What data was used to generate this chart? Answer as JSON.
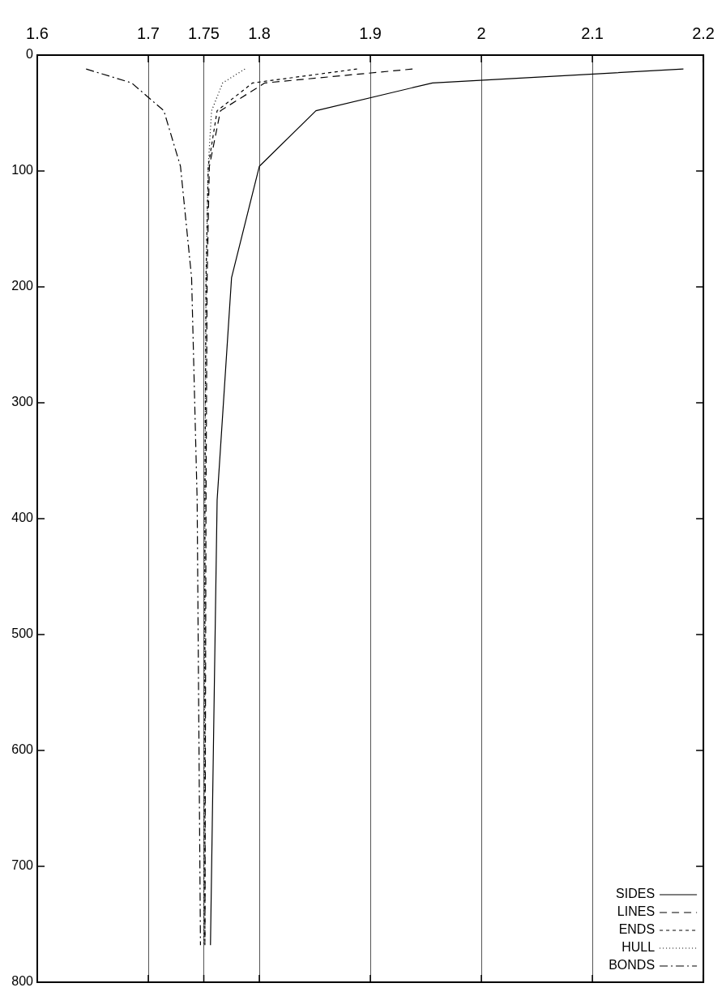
{
  "chart_data": {
    "type": "line",
    "series": [
      {
        "name": "SIDES",
        "color": "#000000",
        "line_style": "solid",
        "x": [
          2.182,
          1.956,
          1.851,
          1.8,
          1.775,
          1.762,
          1.756
        ],
        "values": [
          12,
          24,
          48,
          96,
          192,
          384,
          768
        ]
      },
      {
        "name": "LINES",
        "color": "#000000",
        "line_style": "dashed",
        "x": [
          1.938,
          1.805,
          1.765,
          1.755,
          1.753,
          1.752,
          1.751
        ],
        "values": [
          12,
          24,
          48,
          96,
          192,
          384,
          768
        ]
      },
      {
        "name": "ENDS",
        "color": "#000000",
        "line_style": "short-dashed",
        "x": [
          1.888,
          1.794,
          1.762,
          1.754,
          1.752,
          1.751,
          1.751
        ],
        "values": [
          12,
          24,
          48,
          96,
          192,
          384,
          768
        ]
      },
      {
        "name": "HULL",
        "color": "#000000",
        "line_style": "dotted",
        "x": [
          1.787,
          1.767,
          1.757,
          1.754,
          1.752,
          1.751,
          1.75
        ],
        "values": [
          12,
          24,
          48,
          96,
          192,
          384,
          768
        ]
      },
      {
        "name": "BONDS",
        "color": "#000000",
        "line_style": "dashdot",
        "x": [
          1.644,
          1.685,
          1.714,
          1.729,
          1.739,
          1.744,
          1.747
        ],
        "values": [
          12,
          24,
          48,
          96,
          192,
          384,
          768
        ]
      }
    ],
    "xlim": [
      1.6,
      2.2
    ],
    "xticks": [
      1.6,
      1.7,
      1.75,
      1.8,
      1.9,
      2,
      2.1,
      2.2
    ],
    "ylim": [
      800,
      0
    ],
    "yticks": [
      0,
      100,
      200,
      300,
      400,
      500,
      600,
      700,
      800
    ],
    "grid": "x",
    "legend": "bottom right",
    "marker": "none"
  }
}
